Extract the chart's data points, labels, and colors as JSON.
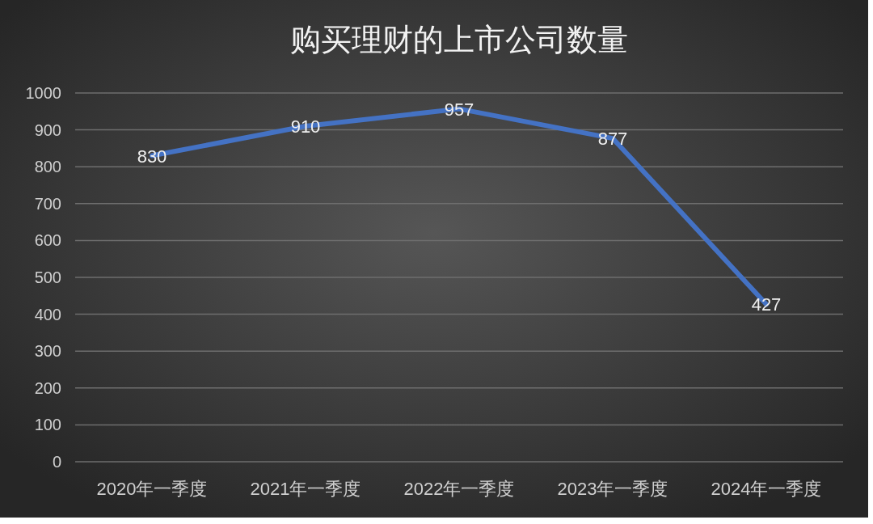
{
  "chart_data": {
    "type": "line",
    "title": "购买理财的上市公司数量",
    "categories": [
      "2020年一季度",
      "2021年一季度",
      "2022年一季度",
      "2023年一季度",
      "2024年一季度"
    ],
    "series": [
      {
        "color": "#4472c4",
        "values": [
          830,
          910,
          957,
          877,
          427
        ]
      }
    ],
    "ylim": [
      0,
      1000
    ],
    "yticks": [
      0,
      100,
      200,
      300,
      400,
      500,
      600,
      700,
      800,
      900,
      1000
    ],
    "grid": "y",
    "data_labels": true
  }
}
